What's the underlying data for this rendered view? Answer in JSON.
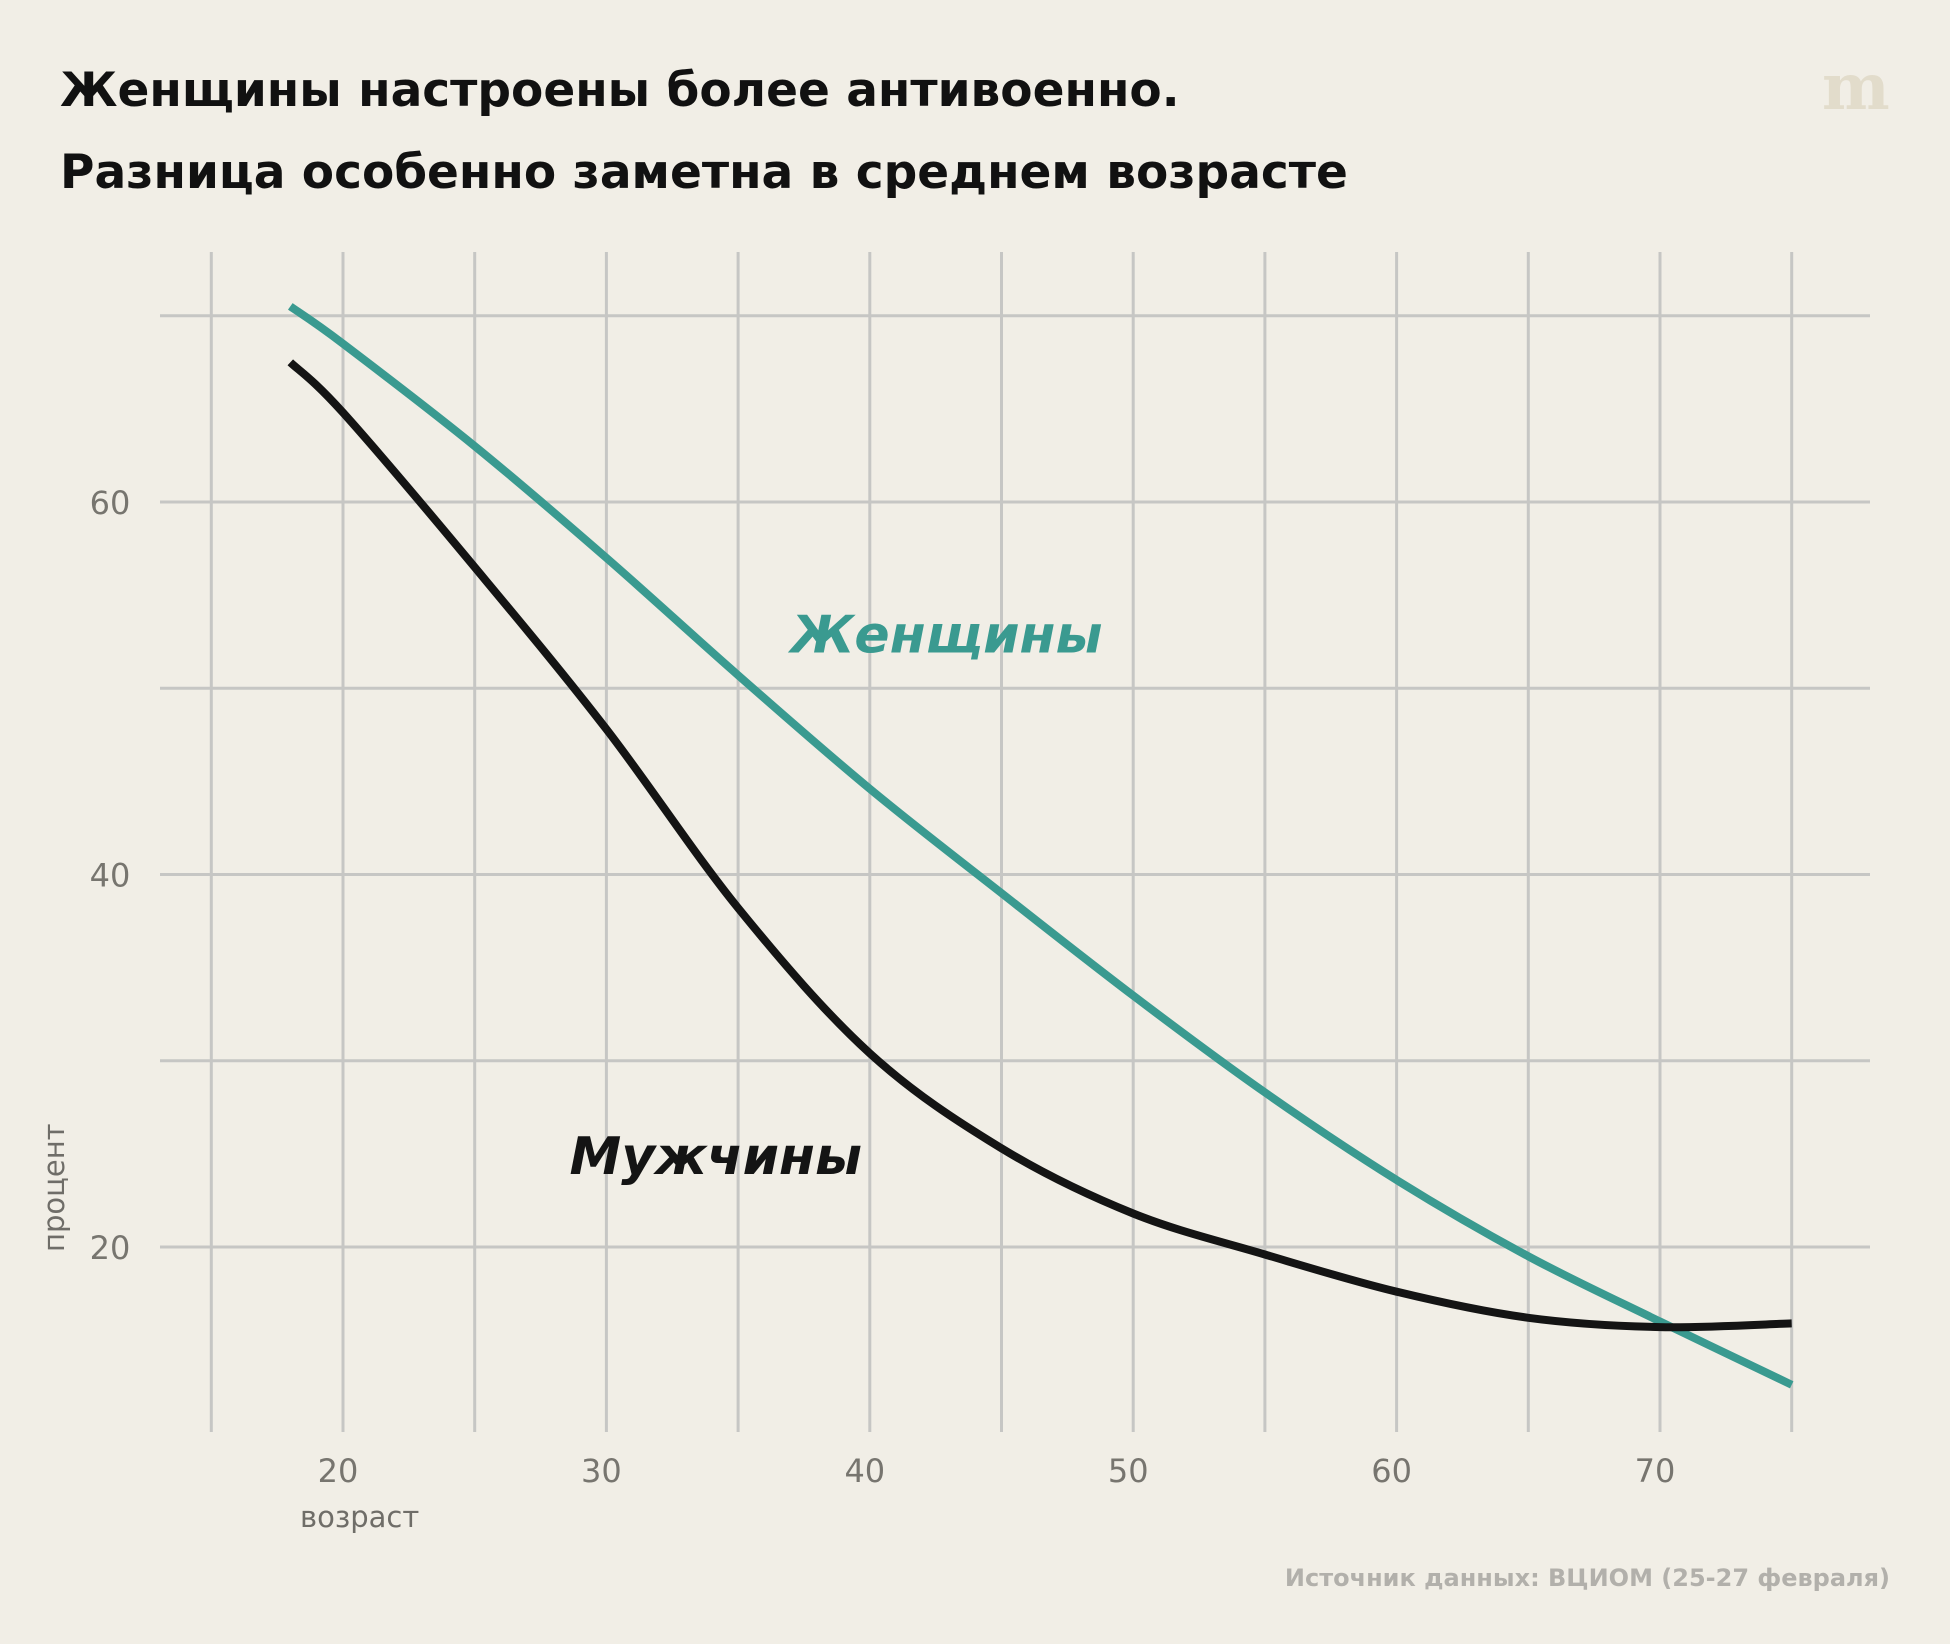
{
  "title": {
    "line1": "Женщины настроены более антивоенно.",
    "line2": "Разница особенно заметна в среднем возрасте"
  },
  "logo": "m",
  "source": "Источник данных: ВЦИОМ (25-27 февраля)",
  "colors": {
    "background": "#f1eee6",
    "grid": "#c6c6c4",
    "women": "#3a9a90",
    "men": "#141414"
  },
  "chart_data": {
    "type": "line",
    "xlabel": "возраст",
    "ylabel": "процент",
    "xlim": [
      15,
      77
    ],
    "ylim": [
      10,
      73
    ],
    "x_ticks": [
      20,
      30,
      40,
      50,
      60,
      70
    ],
    "x_tick_labels": [
      "20",
      "30",
      "40",
      "50",
      "60",
      "70"
    ],
    "x_grid": [
      15,
      20,
      25,
      30,
      35,
      40,
      45,
      50,
      55,
      60,
      65,
      70,
      75
    ],
    "y_ticks": [
      20,
      40,
      60
    ],
    "y_tick_labels": [
      "20",
      "40",
      "60"
    ],
    "y_grid": [
      20,
      30,
      40,
      50,
      60,
      70
    ],
    "grid": true,
    "legend": "direct labels on chart",
    "series": [
      {
        "name": "Женщины",
        "color": "#3a9a90",
        "x": [
          18,
          20,
          25,
          30,
          35,
          40,
          45,
          50,
          55,
          60,
          65,
          70,
          75
        ],
        "y": [
          70.5,
          68.5,
          63,
          57,
          50.7,
          44.6,
          39,
          33.5,
          28.3,
          23.6,
          19.5,
          16,
          12.6
        ]
      },
      {
        "name": "Мужчины",
        "color": "#141414",
        "x": [
          18,
          20,
          25,
          30,
          35,
          40,
          45,
          50,
          55,
          60,
          65,
          70,
          75
        ],
        "y": [
          67.5,
          64.8,
          56.5,
          47.8,
          38.2,
          30.4,
          25.3,
          21.8,
          19.6,
          17.6,
          16.2,
          15.7,
          15.9
        ]
      }
    ],
    "annotations": [
      {
        "text": "Женщины",
        "series": "Женщины",
        "x": 37,
        "y": 53
      },
      {
        "text": "Мужчины",
        "series": "Мужчины",
        "x": 28.6,
        "y": 25
      }
    ]
  }
}
